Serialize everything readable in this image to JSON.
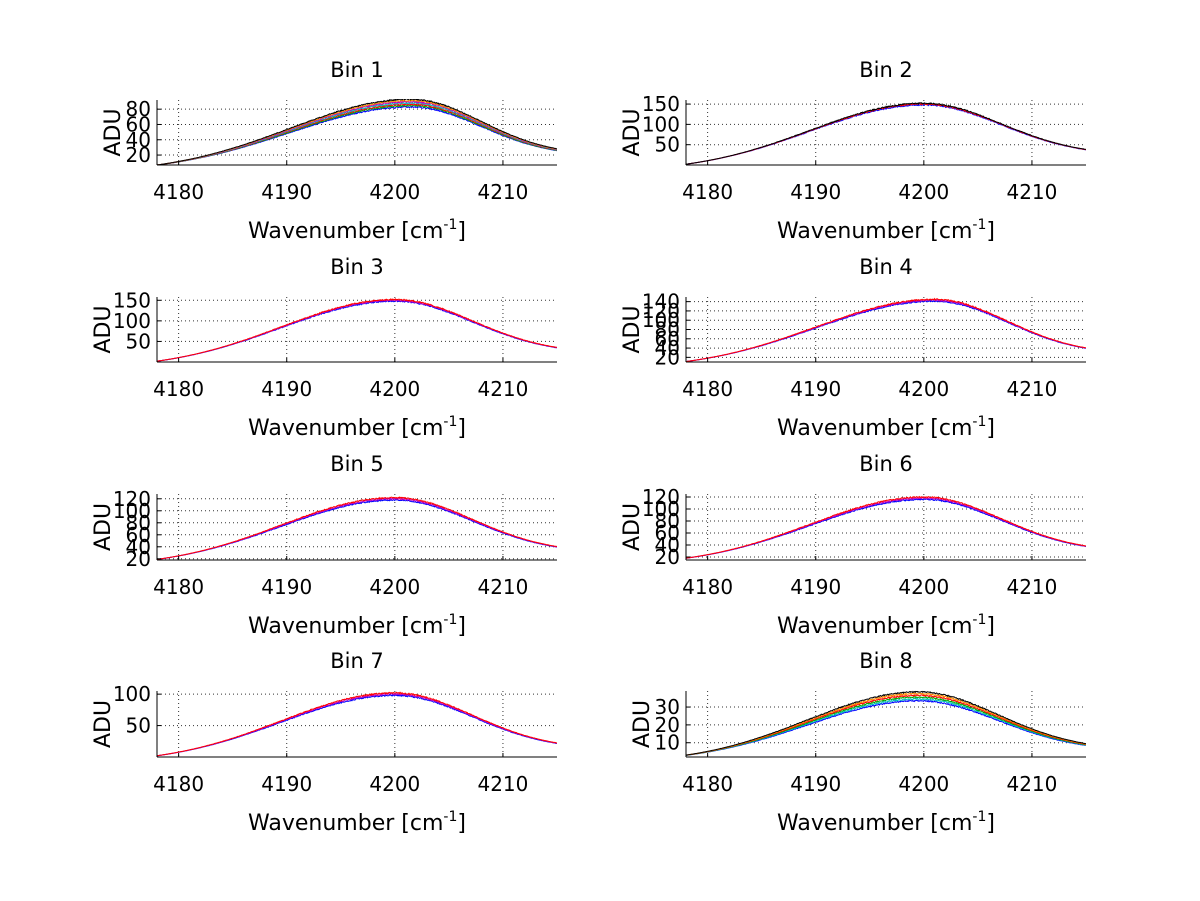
{
  "chart_data": [
    {
      "type": "line",
      "title": "Bin 1",
      "xlabel": "Wavenumber [cm",
      "xlabel_sup": "-1",
      "xlabel_close": "]",
      "ylabel": "ADU",
      "xlim": [
        4178,
        4215
      ],
      "ylim": [
        7,
        92
      ],
      "xticks": [
        4180,
        4190,
        4200,
        4210
      ],
      "yticks": [
        20,
        40,
        60,
        80
      ],
      "peak_x": 4201.5,
      "peak_y": 88,
      "edge_left": 7,
      "edge_right": 27,
      "spread": 5,
      "series": [
        {
          "name": "blue",
          "color": "#0000ff"
        },
        {
          "name": "green",
          "color": "#00aa00"
        },
        {
          "name": "red",
          "color": "#ff0000"
        },
        {
          "name": "cyan",
          "color": "#00bfbf"
        },
        {
          "name": "magenta",
          "color": "#bf00bf"
        },
        {
          "name": "orange",
          "color": "#ff8c00"
        },
        {
          "name": "black",
          "color": "#000000"
        }
      ]
    },
    {
      "type": "line",
      "title": "Bin 2",
      "xlabel": "Wavenumber [cm",
      "xlabel_sup": "-1",
      "xlabel_close": "]",
      "ylabel": "ADU",
      "xlim": [
        4178,
        4215
      ],
      "ylim": [
        0,
        160
      ],
      "xticks": [
        4180,
        4190,
        4200,
        4210
      ],
      "yticks": [
        50,
        100,
        150
      ],
      "peak_x": 4200,
      "peak_y": 150,
      "edge_left": 2,
      "edge_right": 38,
      "spread": 2,
      "series": [
        {
          "name": "blue",
          "color": "#0000ff"
        },
        {
          "name": "red",
          "color": "#ff0000"
        },
        {
          "name": "black",
          "color": "#000000"
        }
      ]
    },
    {
      "type": "line",
      "title": "Bin 3",
      "xlabel": "Wavenumber [cm",
      "xlabel_sup": "-1",
      "xlabel_close": "]",
      "ylabel": "ADU",
      "xlim": [
        4178,
        4215
      ],
      "ylim": [
        0,
        158
      ],
      "xticks": [
        4180,
        4190,
        4200,
        4210
      ],
      "yticks": [
        50,
        100,
        150
      ],
      "peak_x": 4200,
      "peak_y": 150,
      "edge_left": 2,
      "edge_right": 35,
      "spread": 2,
      "series": [
        {
          "name": "blue",
          "color": "#0000ff"
        },
        {
          "name": "magenta",
          "color": "#bf00bf"
        },
        {
          "name": "red",
          "color": "#ff0000"
        }
      ]
    },
    {
      "type": "line",
      "title": "Bin 4",
      "xlabel": "Wavenumber [cm",
      "xlabel_sup": "-1",
      "xlabel_close": "]",
      "ylabel": "ADU",
      "xlim": [
        4178,
        4215
      ],
      "ylim": [
        10,
        150
      ],
      "xticks": [
        4180,
        4190,
        4200,
        4210
      ],
      "yticks": [
        20,
        40,
        60,
        80,
        100,
        120,
        140
      ],
      "yticklabels": [
        "20",
        "40",
        "60",
        "80",
        "100",
        "120",
        "140"
      ],
      "peak_x": 4201,
      "peak_y": 143,
      "edge_left": 11,
      "edge_right": 40,
      "spread": 2,
      "series": [
        {
          "name": "blue",
          "color": "#0000ff"
        },
        {
          "name": "magenta",
          "color": "#bf00bf"
        },
        {
          "name": "red",
          "color": "#ff0000"
        }
      ]
    },
    {
      "type": "line",
      "title": "Bin 5",
      "xlabel": "Wavenumber [cm",
      "xlabel_sup": "-1",
      "xlabel_close": "]",
      "ylabel": "ADU",
      "xlim": [
        4178,
        4215
      ],
      "ylim": [
        18,
        128
      ],
      "xticks": [
        4180,
        4190,
        4200,
        4210
      ],
      "yticks": [
        20,
        40,
        60,
        80,
        100,
        120
      ],
      "peak_x": 4200,
      "peak_y": 120,
      "edge_left": 19,
      "edge_right": 40,
      "spread": 2,
      "series": [
        {
          "name": "blue",
          "color": "#0000ff"
        },
        {
          "name": "magenta",
          "color": "#bf00bf"
        },
        {
          "name": "red",
          "color": "#ff0000"
        }
      ]
    },
    {
      "type": "line",
      "title": "Bin 6",
      "xlabel": "Wavenumber [cm",
      "xlabel_sup": "-1",
      "xlabel_close": "]",
      "ylabel": "ADU",
      "xlim": [
        4178,
        4215
      ],
      "ylim": [
        15,
        125
      ],
      "xticks": [
        4180,
        4190,
        4200,
        4210
      ],
      "yticks": [
        20,
        40,
        60,
        80,
        100,
        120
      ],
      "peak_x": 4200,
      "peak_y": 118,
      "edge_left": 18,
      "edge_right": 38,
      "spread": 2,
      "series": [
        {
          "name": "blue",
          "color": "#0000ff"
        },
        {
          "name": "magenta",
          "color": "#bf00bf"
        },
        {
          "name": "red",
          "color": "#ff0000"
        }
      ]
    },
    {
      "type": "line",
      "title": "Bin 7",
      "xlabel": "Wavenumber [cm",
      "xlabel_sup": "-1",
      "xlabel_close": "]",
      "ylabel": "ADU",
      "xlim": [
        4178,
        4215
      ],
      "ylim": [
        0,
        105
      ],
      "xticks": [
        4180,
        4190,
        4200,
        4210
      ],
      "yticks": [
        50,
        100
      ],
      "peak_x": 4200,
      "peak_y": 100,
      "edge_left": 2,
      "edge_right": 22,
      "spread": 2,
      "series": [
        {
          "name": "blue",
          "color": "#0000ff"
        },
        {
          "name": "magenta",
          "color": "#bf00bf"
        },
        {
          "name": "red",
          "color": "#ff0000"
        }
      ]
    },
    {
      "type": "line",
      "title": "Bin 8",
      "xlabel": "Wavenumber [cm",
      "xlabel_sup": "-1",
      "xlabel_close": "]",
      "ylabel": "ADU",
      "xlim": [
        4178,
        4215
      ],
      "ylim": [
        2,
        39
      ],
      "xticks": [
        4180,
        4190,
        4200,
        4210
      ],
      "yticks": [
        10,
        20,
        30
      ],
      "peak_x": 4199.5,
      "peak_y": 36,
      "edge_left": 3,
      "edge_right": 9,
      "spread": 2.5,
      "series": [
        {
          "name": "blue",
          "color": "#0000ff"
        },
        {
          "name": "cyan",
          "color": "#00bfbf"
        },
        {
          "name": "green",
          "color": "#00aa00"
        },
        {
          "name": "red",
          "color": "#ff0000"
        },
        {
          "name": "orange",
          "color": "#ff8c00"
        },
        {
          "name": "black",
          "color": "#000000"
        }
      ]
    }
  ]
}
